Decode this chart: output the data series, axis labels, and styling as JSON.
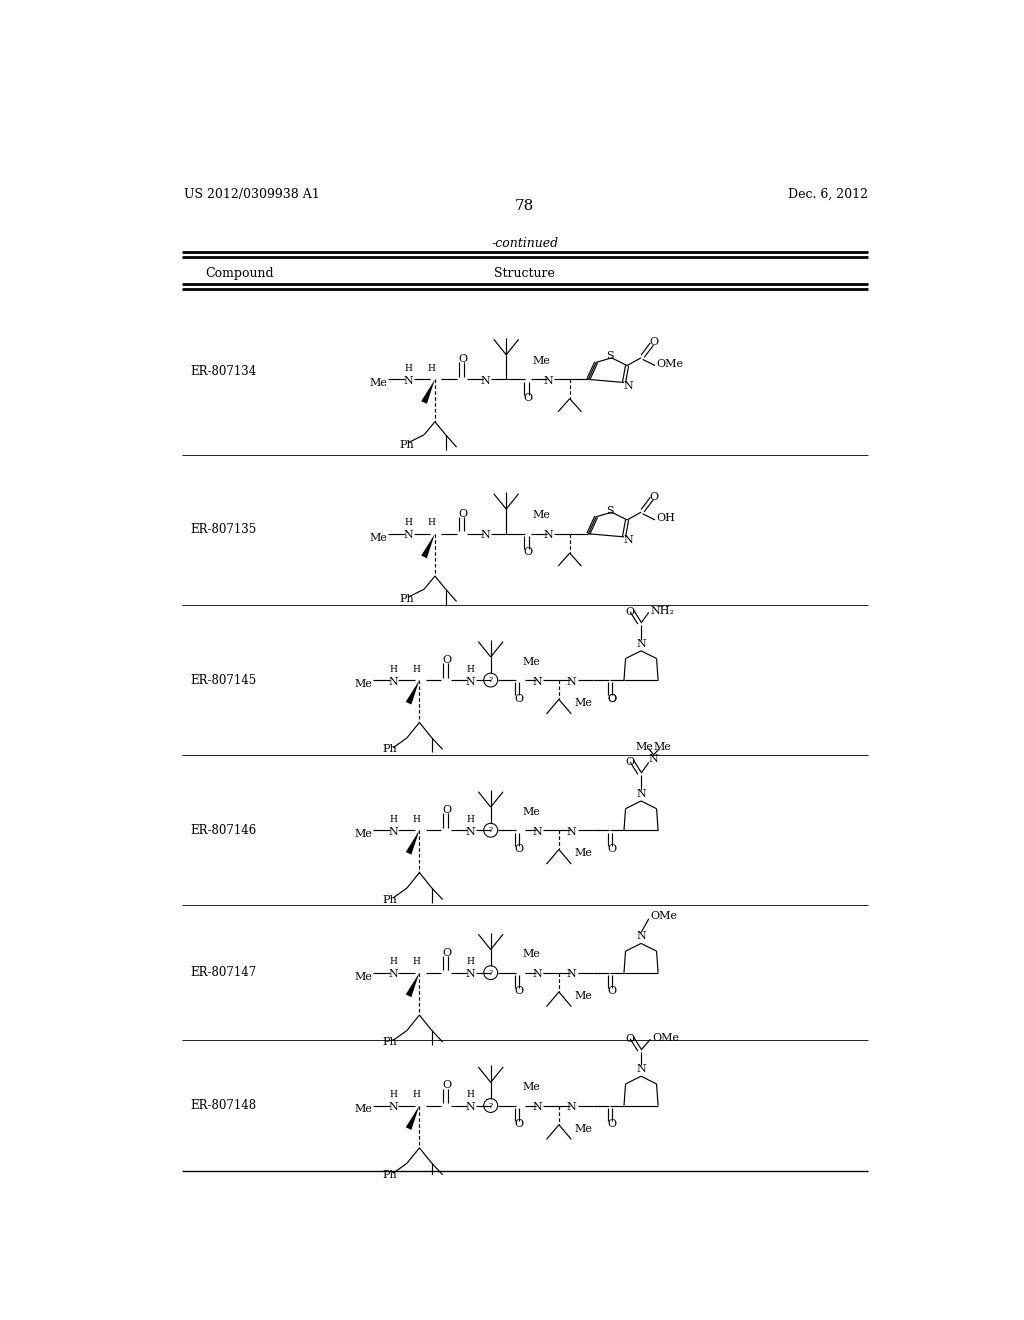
{
  "page_number": "78",
  "patent_number": "US 2012/0309938 A1",
  "patent_date": "Dec. 6, 2012",
  "continued_label": "-continued",
  "col_compound": "Compound",
  "col_structure": "Structure",
  "compound_ids": [
    "ER-807134",
    "ER-807135",
    "ER-807145",
    "ER-807146",
    "ER-807147",
    "ER-807148"
  ],
  "background_color": "#ffffff"
}
